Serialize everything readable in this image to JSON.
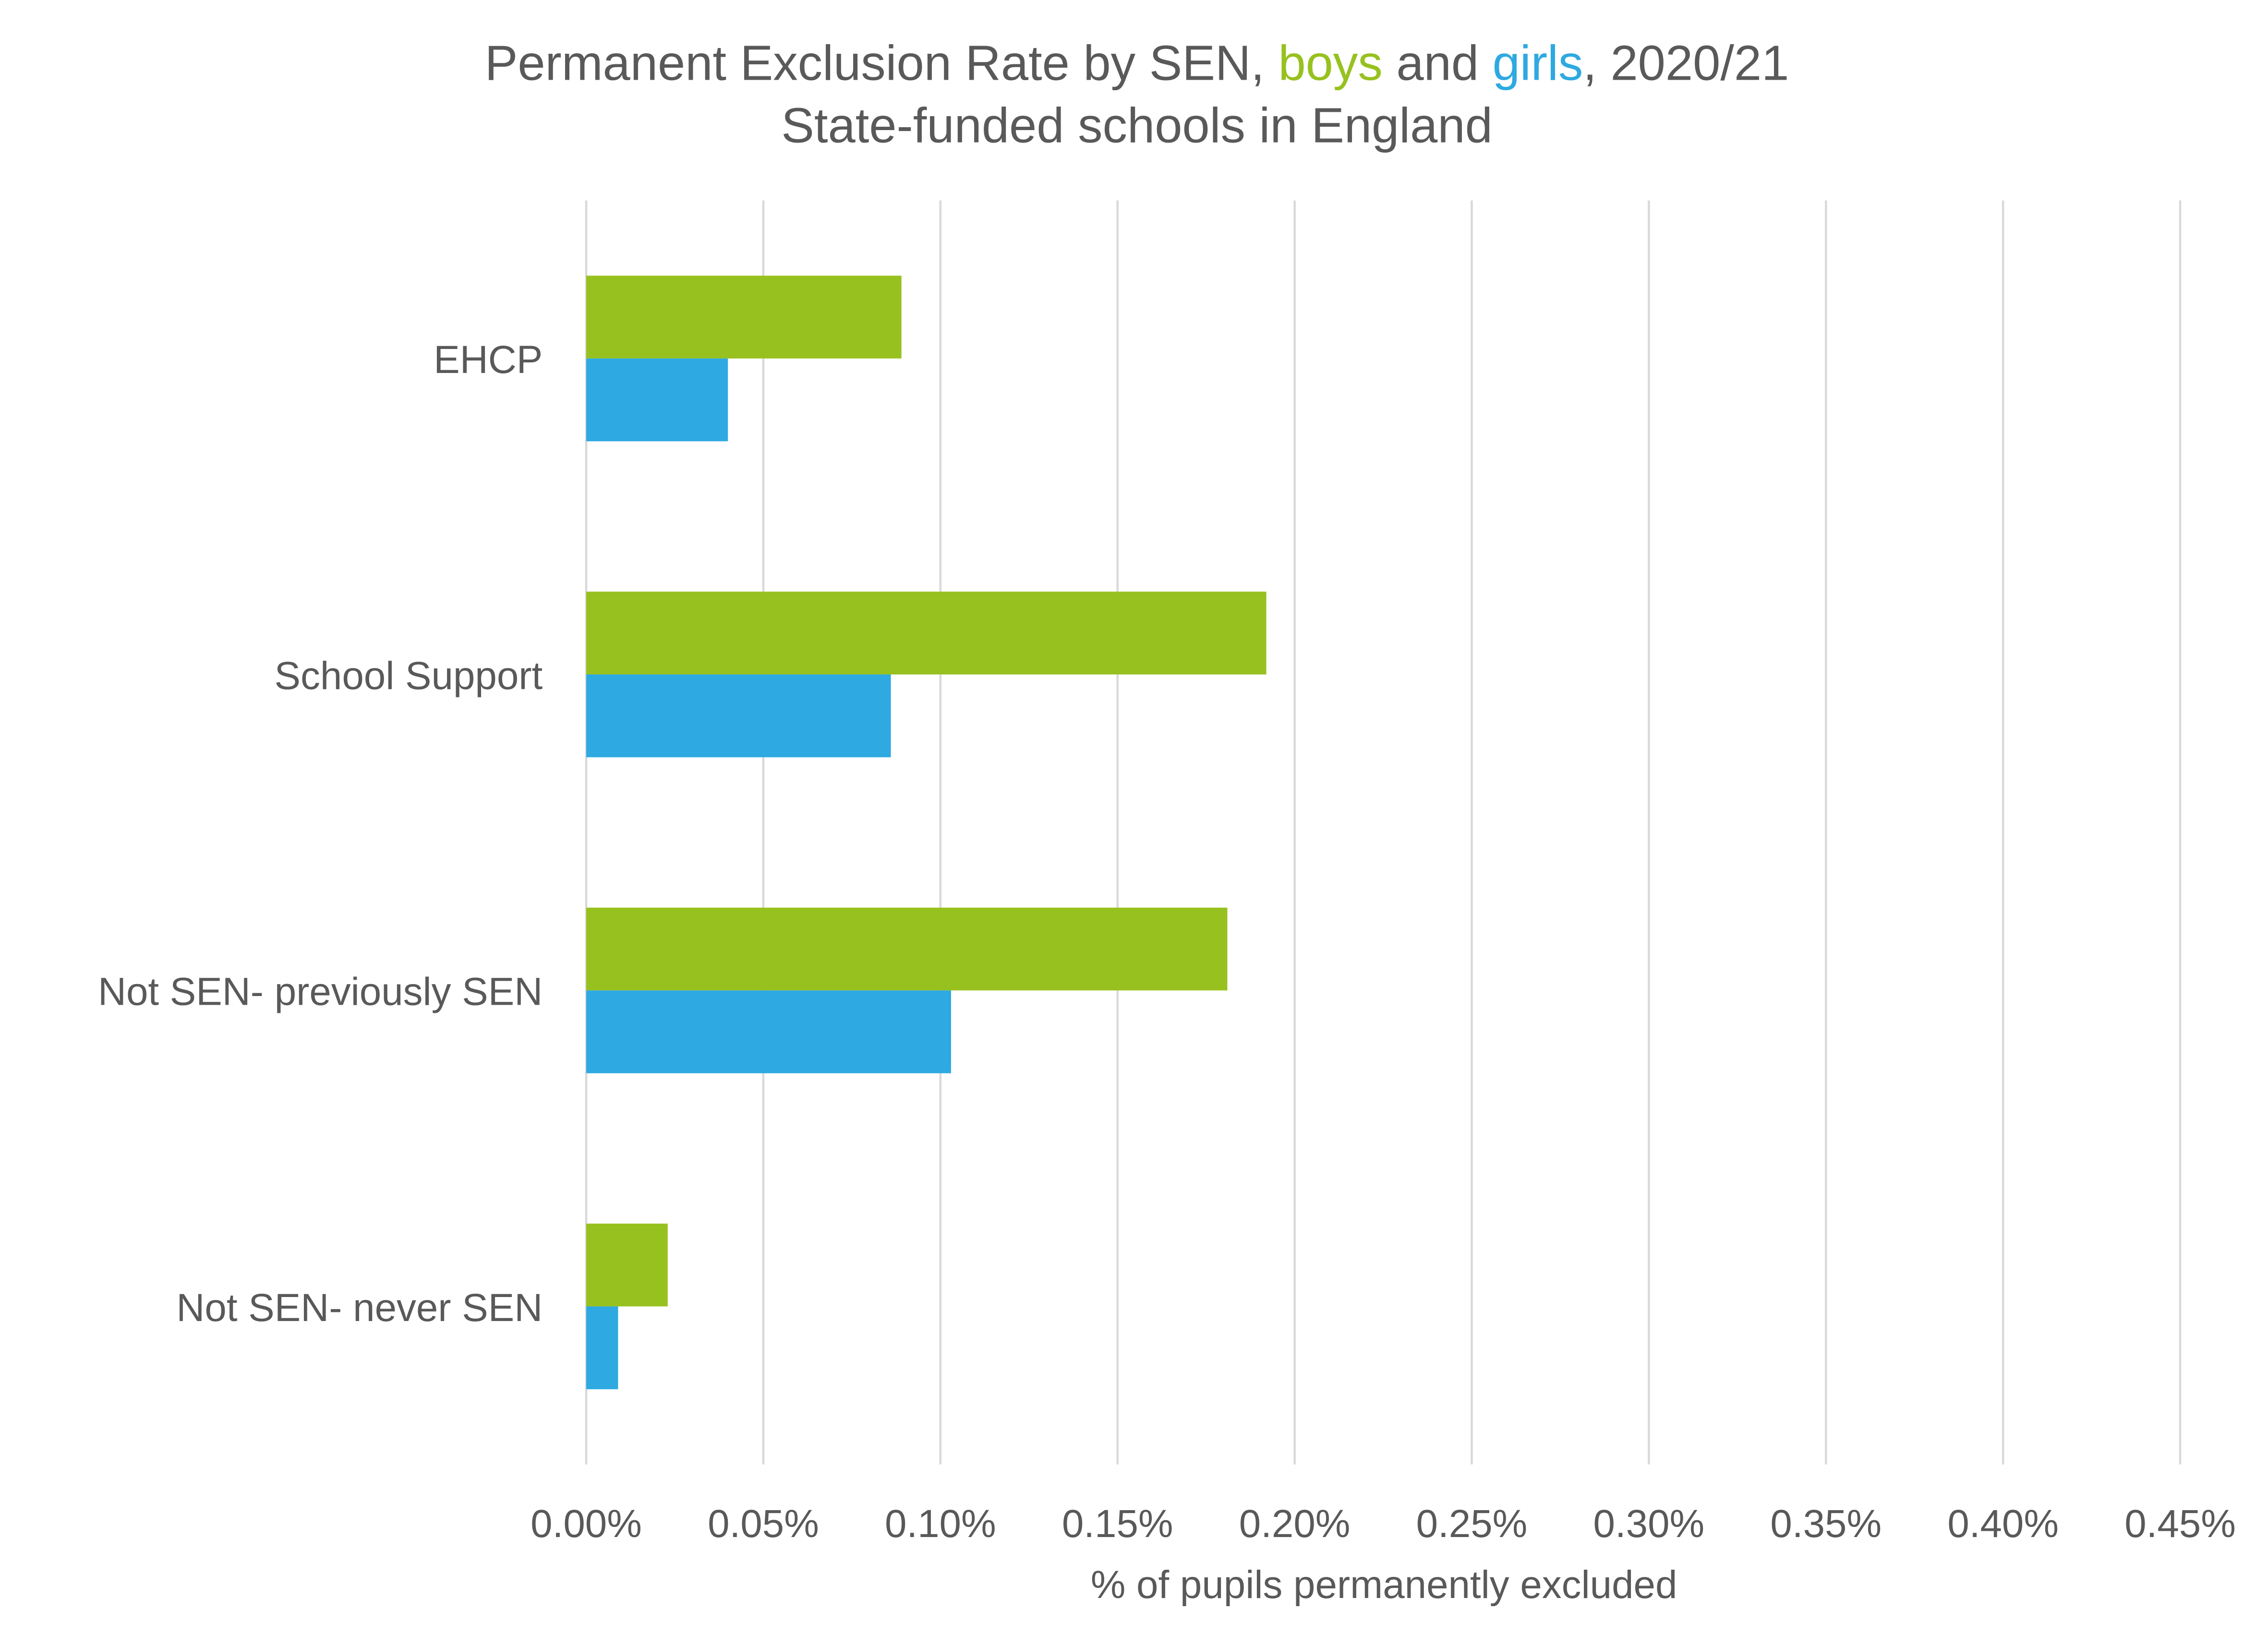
{
  "chart_data": {
    "type": "bar",
    "orientation": "horizontal",
    "title_parts": [
      "Permanent Exclusion Rate by SEN, ",
      "boys",
      " and ",
      "girls",
      ", 2020/21"
    ],
    "subtitle": "State-funded schools in England",
    "xlabel": "% of pupils permanently excluded",
    "ylabel": "",
    "categories": [
      "EHCP",
      "School Support",
      "Not SEN- previously SEN",
      "Not SEN- never SEN"
    ],
    "series": [
      {
        "name": "boys",
        "color": "#97c11f",
        "values": [
          0.089,
          0.192,
          0.181,
          0.023
        ]
      },
      {
        "name": "girls",
        "color": "#2ea9e1",
        "values": [
          0.04,
          0.086,
          0.103,
          0.009
        ]
      }
    ],
    "xlim": [
      0,
      0.45
    ],
    "xticks": [
      0,
      0.05,
      0.1,
      0.15,
      0.2,
      0.25,
      0.3,
      0.35,
      0.4,
      0.45
    ],
    "xtick_labels": [
      "0.00%",
      "0.05%",
      "0.10%",
      "0.15%",
      "0.20%",
      "0.25%",
      "0.30%",
      "0.35%",
      "0.40%",
      "0.45%"
    ],
    "grid": true,
    "legend": "none (series named in title)"
  }
}
